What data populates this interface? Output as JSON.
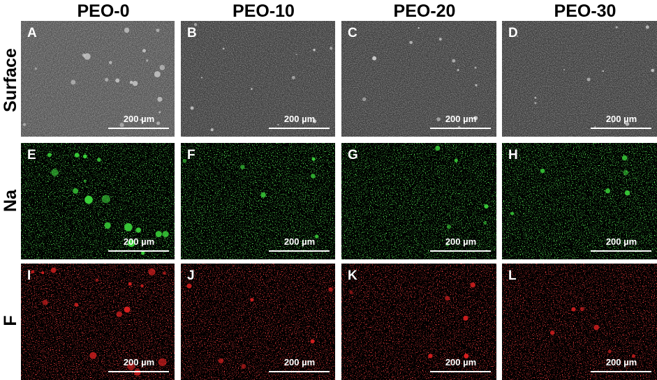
{
  "columns": [
    "PEO-0",
    "PEO-10",
    "PEO-20",
    "PEO-30"
  ],
  "rows": [
    "Surface",
    "Na",
    "F"
  ],
  "panels": [
    {
      "letter": "A",
      "scale": "200 µm"
    },
    {
      "letter": "B",
      "scale": "200 µm"
    },
    {
      "letter": "C",
      "scale": "200 µm"
    },
    {
      "letter": "D",
      "scale": "200 µm"
    },
    {
      "letter": "E",
      "scale": "200 µm"
    },
    {
      "letter": "F",
      "scale": "200 µm"
    },
    {
      "letter": "G",
      "scale": "200 µm"
    },
    {
      "letter": "H",
      "scale": "200 µm"
    },
    {
      "letter": "I",
      "scale": "200 µm"
    },
    {
      "letter": "J",
      "scale": "200 µm"
    },
    {
      "letter": "K",
      "scale": "200 µm"
    },
    {
      "letter": "L",
      "scale": "200 µm"
    }
  ]
}
